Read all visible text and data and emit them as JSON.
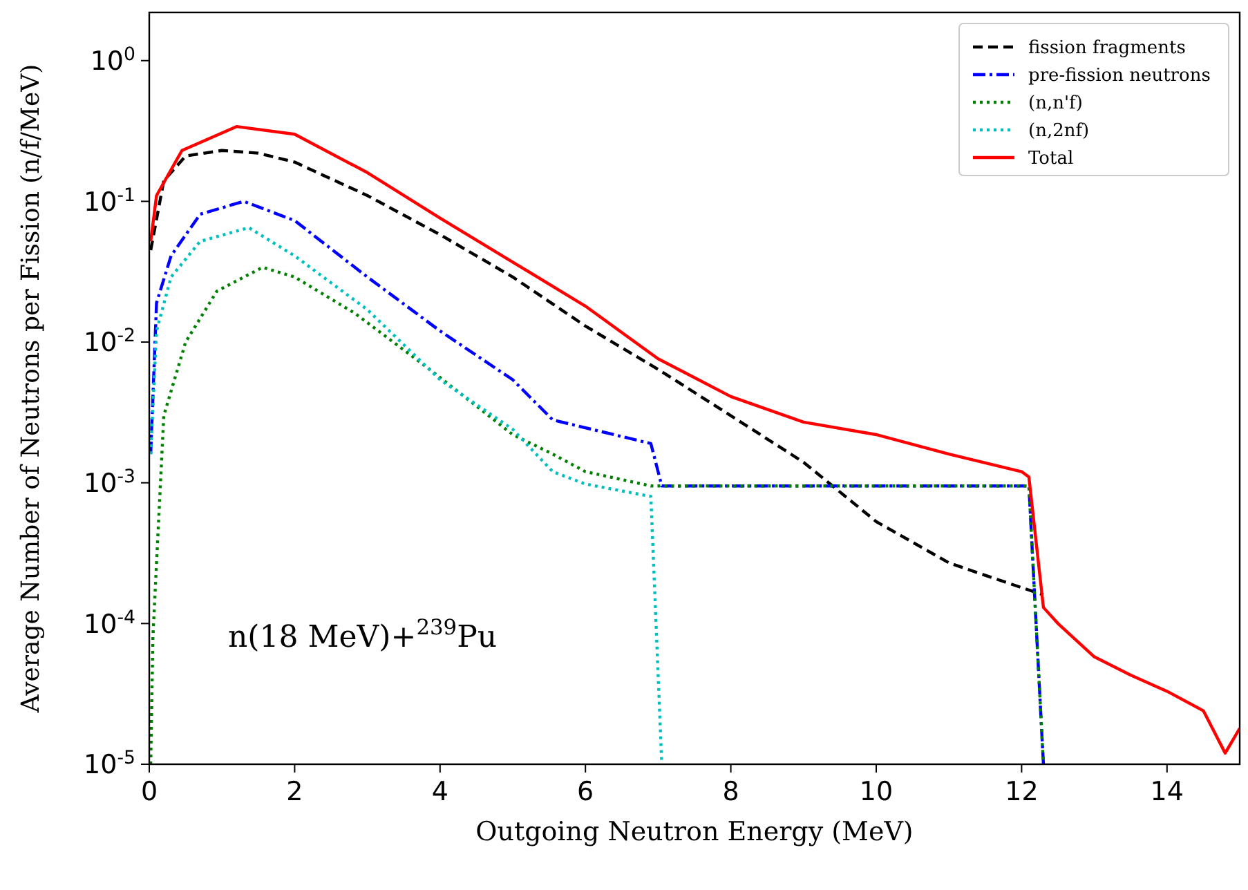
{
  "chart_data": {
    "type": "line",
    "xlabel": "Outgoing Neutron Energy (MeV)",
    "ylabel": "Average Number of Neutrons per Fission (n/f/MeV)",
    "log": "y",
    "xlim": [
      0,
      15
    ],
    "ylim": [
      1e-05,
      2.2
    ],
    "xticks": [
      0,
      2,
      4,
      6,
      8,
      10,
      12,
      14
    ],
    "yticks": [
      {
        "value": 1e-05,
        "label": "10$^{-5}$"
      },
      {
        "value": 0.0001,
        "label": "10$^{-4}$"
      },
      {
        "value": 0.001,
        "label": "10$^{-3}$"
      },
      {
        "value": 0.01,
        "label": "10$^{-2}$"
      },
      {
        "value": 0.1,
        "label": "10$^{-1}$"
      },
      {
        "value": 1,
        "label": "10$^{0}$"
      }
    ],
    "grid": false,
    "legend": "top right",
    "annotations": [
      "n(18 MeV)+$^{239}$Pu"
    ],
    "series": [
      {
        "name": "fission fragments",
        "color": "#000000",
        "line_style": "dashed",
        "x": [
          0.02,
          0.2,
          0.5,
          1,
          1.5,
          2,
          3,
          4,
          5,
          6,
          7,
          8,
          9,
          10,
          11,
          11.5,
          12,
          12.3
        ],
        "values": [
          0.045,
          0.14,
          0.21,
          0.23,
          0.22,
          0.19,
          0.11,
          0.058,
          0.029,
          0.013,
          0.0064,
          0.003,
          0.0014,
          0.00053,
          0.00027,
          0.00022,
          0.00018,
          0.00016
        ]
      },
      {
        "name": "pre-fission neutrons",
        "color": "#0000ff",
        "line_style": "dashdot",
        "x": [
          0.02,
          0.1,
          0.3,
          0.7,
          1.3,
          2,
          3,
          4,
          5,
          5.55,
          6.9,
          7.05,
          8,
          9,
          10,
          11,
          12.1,
          12.3
        ],
        "values": [
          0.0016,
          0.019,
          0.041,
          0.081,
          0.1,
          0.073,
          0.029,
          0.012,
          0.0054,
          0.0028,
          0.0019,
          0.00095,
          0.00095,
          0.00095,
          0.00095,
          0.00095,
          0.00095,
          1e-05
        ]
      },
      {
        "name": "(n,n'f)",
        "color": "#008000",
        "line_style": "dotted",
        "x": [
          0.02,
          0.05,
          0.2,
          0.5,
          0.93,
          1.56,
          2,
          2.83,
          3.84,
          5,
          5.55,
          6,
          6.9,
          8,
          9,
          10,
          11,
          12.1,
          12.3
        ],
        "values": [
          1e-05,
          8e-05,
          0.003,
          0.01,
          0.023,
          0.034,
          0.029,
          0.016,
          0.0065,
          0.0022,
          0.0016,
          0.0012,
          0.00095,
          0.00095,
          0.00095,
          0.00095,
          0.00095,
          0.00095,
          1e-05
        ]
      },
      {
        "name": "(n,2nf)",
        "color": "#00bfbf",
        "line_style": "dotted",
        "x": [
          0.02,
          0.1,
          0.3,
          0.7,
          1.37,
          2,
          3,
          4,
          5,
          5.55,
          6,
          6.9,
          7.05
        ],
        "values": [
          0.0016,
          0.012,
          0.029,
          0.052,
          0.065,
          0.041,
          0.017,
          0.0054,
          0.0024,
          0.0012,
          0.00098,
          0.0008,
          1e-05
        ]
      },
      {
        "name": "Total",
        "color": "#ff0000",
        "line_style": "solid",
        "x": [
          0.02,
          0.1,
          0.45,
          1.2,
          2,
          3,
          4,
          5,
          6,
          7,
          8,
          9,
          10,
          11,
          12,
          12.1,
          12.3,
          12.5,
          13,
          13.5,
          14,
          14.5,
          14.8,
          15
        ],
        "values": [
          0.052,
          0.11,
          0.23,
          0.34,
          0.3,
          0.16,
          0.076,
          0.037,
          0.018,
          0.0076,
          0.0041,
          0.0027,
          0.0022,
          0.0016,
          0.0012,
          0.0011,
          0.00013,
          0.0001,
          5.8e-05,
          4.3e-05,
          3.3e-05,
          2.4e-05,
          1.2e-05,
          1.8e-05
        ]
      }
    ]
  }
}
